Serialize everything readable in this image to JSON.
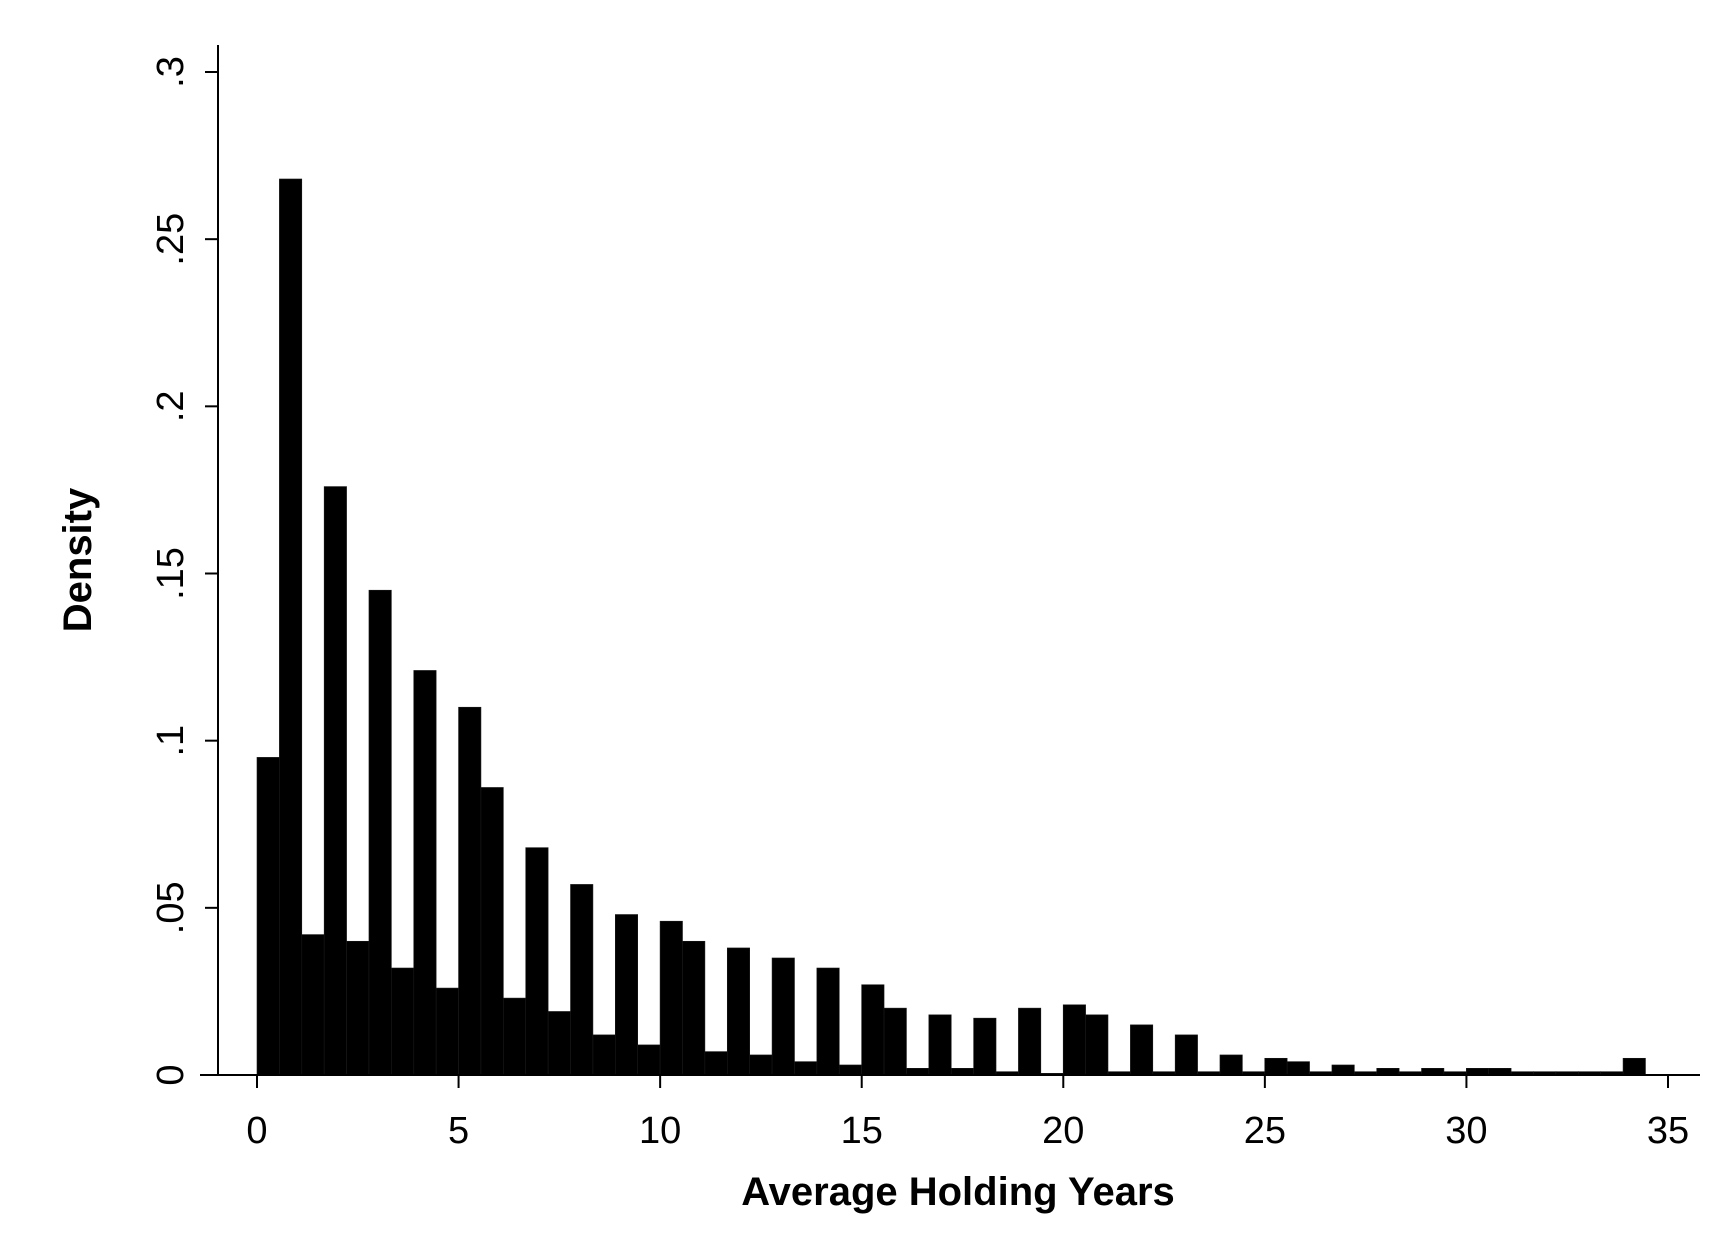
{
  "chart_data": {
    "type": "bar",
    "xlabel": "Average Holding Years",
    "ylabel": "Density",
    "xlim": [
      0,
      35
    ],
    "ylim": [
      0,
      0.3
    ],
    "bin_width": 0.5555,
    "bin_start": 0,
    "xticks": [
      {
        "value": 0,
        "label": "0"
      },
      {
        "value": 5,
        "label": "5"
      },
      {
        "value": 10,
        "label": "10"
      },
      {
        "value": 15,
        "label": "15"
      },
      {
        "value": 20,
        "label": "20"
      },
      {
        "value": 25,
        "label": "25"
      },
      {
        "value": 30,
        "label": "30"
      },
      {
        "value": 35,
        "label": "35"
      }
    ],
    "yticks": [
      {
        "value": 0,
        "label": "0"
      },
      {
        "value": 0.05,
        "label": ".05"
      },
      {
        "value": 0.1,
        "label": ".1"
      },
      {
        "value": 0.15,
        "label": ".15"
      },
      {
        "value": 0.2,
        "label": ".2"
      },
      {
        "value": 0.25,
        "label": ".25"
      },
      {
        "value": 0.3,
        "label": ".3"
      }
    ],
    "values": [
      0.095,
      0.268,
      0.042,
      0.176,
      0.04,
      0.145,
      0.032,
      0.121,
      0.026,
      0.11,
      0.086,
      0.023,
      0.068,
      0.019,
      0.057,
      0.012,
      0.048,
      0.009,
      0.046,
      0.04,
      0.007,
      0.038,
      0.006,
      0.035,
      0.004,
      0.032,
      0.003,
      0.027,
      0.02,
      0.002,
      0.018,
      0.002,
      0.017,
      0.001,
      0.02,
      0.0005,
      0.021,
      0.018,
      0.001,
      0.015,
      0.001,
      0.012,
      0.001,
      0.006,
      0.001,
      0.005,
      0.004,
      0.001,
      0.003,
      0.001,
      0.002,
      0.001,
      0.002,
      0.001,
      0.002,
      0.002,
      0.001,
      0.001,
      0.001,
      0.001,
      0.001,
      0.005
    ],
    "bar_color": "#000000"
  }
}
